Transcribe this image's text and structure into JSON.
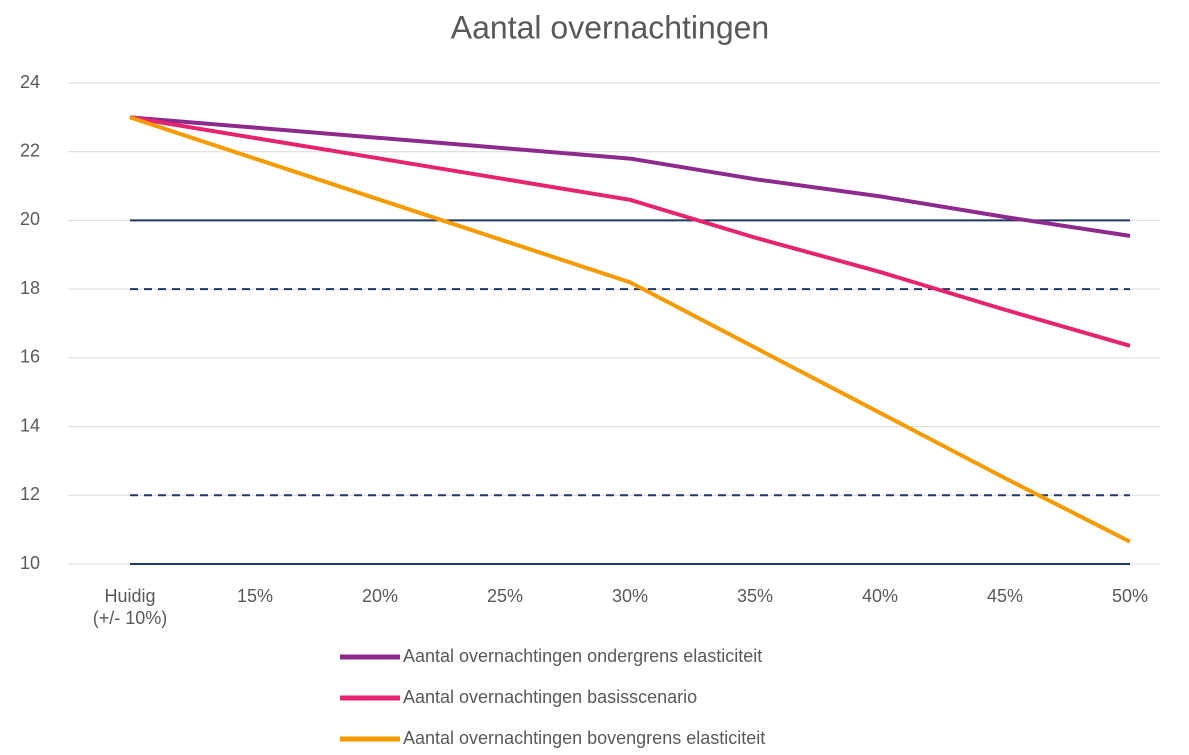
{
  "chart_data": {
    "type": "line",
    "title": "Aantal overnachtingen",
    "categories": [
      "Huidig (+/- 10%)",
      "15%",
      "20%",
      "25%",
      "30%",
      "35%",
      "40%",
      "45%",
      "50%"
    ],
    "series": [
      {
        "name": "Aantal overnachtingen ondergrens elasticiteit",
        "color": "#8e2a8e",
        "values": [
          23,
          22.7,
          22.4,
          22.1,
          21.8,
          21.2,
          20.7,
          20.1,
          19.55
        ]
      },
      {
        "name": "Aantal overnachtingen basisscenario",
        "color": "#e6246e",
        "values": [
          23,
          22.4,
          21.8,
          21.2,
          20.6,
          19.5,
          18.5,
          17.4,
          16.35
        ]
      },
      {
        "name": "Aantal overnachtingen bovengrens elasticiteit",
        "color": "#f59a00",
        "values": [
          23,
          21.8,
          20.6,
          19.4,
          18.2,
          16.3,
          14.4,
          12.5,
          10.65
        ]
      }
    ],
    "ylim": [
      10,
      24
    ],
    "yticks": [
      10,
      12,
      14,
      16,
      18,
      20,
      22,
      24
    ],
    "grid": true,
    "reference_lines": [
      {
        "value": 20,
        "style": "solid",
        "color": "#1f3864"
      },
      {
        "value": 18,
        "style": "dashed",
        "color": "#1f3864"
      },
      {
        "value": 12,
        "style": "dashed",
        "color": "#1f3864"
      },
      {
        "value": 10,
        "style": "solid",
        "color": "#1f3864"
      }
    ]
  }
}
